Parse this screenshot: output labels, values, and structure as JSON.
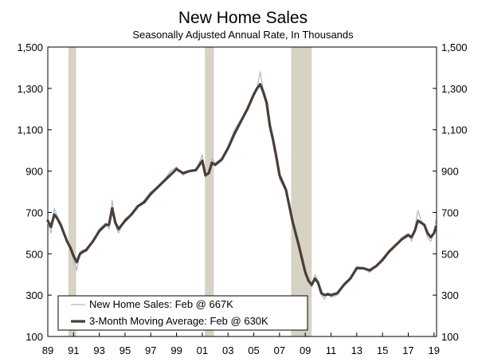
{
  "chart_data": {
    "type": "line",
    "title": "New Home Sales",
    "subtitle": "Seasonally Adjusted Annual Rate, In Thousands",
    "xlabel": "",
    "ylabel": "",
    "xlim": [
      1989.0,
      2019.2
    ],
    "ylim": [
      100,
      1500
    ],
    "y_ticks": [
      100,
      300,
      500,
      700,
      900,
      1100,
      1300,
      1500
    ],
    "y_tick_labels": [
      "100",
      "300",
      "500",
      "700",
      "900",
      "1,100",
      "1,300",
      "1,500"
    ],
    "y_axis_right": true,
    "x_ticks": [
      1989,
      1991,
      1993,
      1995,
      1997,
      1999,
      2001,
      2003,
      2005,
      2007,
      2009,
      2011,
      2013,
      2015,
      2017,
      2019
    ],
    "x_tick_labels": [
      "89",
      "91",
      "93",
      "95",
      "97",
      "99",
      "01",
      "03",
      "05",
      "07",
      "09",
      "11",
      "13",
      "15",
      "17",
      "19"
    ],
    "grid": false,
    "legend_position": "bottom-left",
    "recessions": [
      [
        1990.6,
        1991.2
      ],
      [
        2001.2,
        2001.9
      ],
      [
        2007.9,
        2009.5
      ]
    ],
    "recession_color": "#d6d2c4",
    "series": [
      {
        "name": "New Home Sales: Feb @ 667K",
        "color": "#a9b8cc",
        "style": "thin",
        "x": [
          1989.0,
          1989.25,
          1989.5,
          1989.75,
          1990.0,
          1990.25,
          1990.5,
          1990.75,
          1991.0,
          1991.25,
          1991.5,
          1991.75,
          1992.0,
          1992.5,
          1993.0,
          1993.5,
          1993.75,
          1994.0,
          1994.25,
          1994.5,
          1995.0,
          1995.5,
          1996.0,
          1996.5,
          1997.0,
          1997.5,
          1998.0,
          1998.5,
          1999.0,
          1999.5,
          2000.0,
          2000.5,
          2001.0,
          2001.25,
          2001.5,
          2001.75,
          2002.0,
          2002.5,
          2003.0,
          2003.5,
          2004.0,
          2004.5,
          2005.0,
          2005.25,
          2005.5,
          2005.75,
          2006.0,
          2006.25,
          2006.5,
          2006.75,
          2007.0,
          2007.5,
          2008.0,
          2008.5,
          2009.0,
          2009.25,
          2009.5,
          2009.75,
          2010.0,
          2010.25,
          2010.5,
          2010.75,
          2011.0,
          2011.5,
          2012.0,
          2012.5,
          2013.0,
          2013.5,
          2014.0,
          2014.5,
          2015.0,
          2015.5,
          2016.0,
          2016.5,
          2017.0,
          2017.25,
          2017.5,
          2017.75,
          2018.0,
          2018.25,
          2018.5,
          2018.75,
          2019.0,
          2019.15
        ],
        "y": [
          650,
          600,
          720,
          680,
          640,
          590,
          560,
          520,
          470,
          420,
          510,
          520,
          510,
          560,
          620,
          650,
          620,
          760,
          640,
          600,
          670,
          690,
          730,
          760,
          800,
          820,
          850,
          900,
          920,
          880,
          900,
          900,
          980,
          870,
          890,
          960,
          940,
          960,
          1020,
          1100,
          1150,
          1200,
          1280,
          1300,
          1380,
          1290,
          1230,
          1100,
          1040,
          960,
          860,
          800,
          650,
          520,
          400,
          370,
          340,
          400,
          370,
          300,
          280,
          310,
          290,
          300,
          350,
          380,
          440,
          430,
          410,
          440,
          480,
          510,
          540,
          580,
          600,
          560,
          620,
          710,
          660,
          640,
          580,
          560,
          600,
          667
        ]
      },
      {
        "name": "3-Month Moving Average: Feb @ 630K",
        "color": "#4a3d36",
        "style": "thick",
        "x": [
          1989.0,
          1989.25,
          1989.5,
          1989.75,
          1990.0,
          1990.25,
          1990.5,
          1990.75,
          1991.0,
          1991.25,
          1991.5,
          1991.75,
          1992.0,
          1992.5,
          1993.0,
          1993.5,
          1993.75,
          1994.0,
          1994.25,
          1994.5,
          1995.0,
          1995.5,
          1996.0,
          1996.5,
          1997.0,
          1997.5,
          1998.0,
          1998.5,
          1999.0,
          1999.5,
          2000.0,
          2000.5,
          2001.0,
          2001.25,
          2001.5,
          2001.75,
          2002.0,
          2002.5,
          2003.0,
          2003.5,
          2004.0,
          2004.5,
          2005.0,
          2005.25,
          2005.5,
          2005.75,
          2006.0,
          2006.25,
          2006.5,
          2006.75,
          2007.0,
          2007.5,
          2008.0,
          2008.5,
          2009.0,
          2009.25,
          2009.5,
          2009.75,
          2010.0,
          2010.25,
          2010.5,
          2010.75,
          2011.0,
          2011.5,
          2012.0,
          2012.5,
          2013.0,
          2013.5,
          2014.0,
          2014.5,
          2015.0,
          2015.5,
          2016.0,
          2016.5,
          2017.0,
          2017.25,
          2017.5,
          2017.75,
          2018.0,
          2018.25,
          2018.5,
          2018.75,
          2019.0,
          2019.15
        ],
        "y": [
          660,
          630,
          690,
          670,
          640,
          600,
          560,
          530,
          490,
          460,
          500,
          510,
          520,
          560,
          610,
          640,
          640,
          720,
          650,
          620,
          660,
          690,
          730,
          750,
          790,
          820,
          850,
          880,
          910,
          890,
          900,
          905,
          950,
          880,
          890,
          940,
          930,
          955,
          1010,
          1080,
          1140,
          1200,
          1270,
          1300,
          1320,
          1280,
          1230,
          1120,
          1050,
          970,
          880,
          810,
          660,
          540,
          410,
          370,
          350,
          380,
          360,
          310,
          300,
          305,
          300,
          310,
          350,
          380,
          430,
          430,
          420,
          440,
          470,
          510,
          540,
          570,
          590,
          580,
          610,
          660,
          650,
          640,
          600,
          580,
          600,
          630
        ]
      }
    ]
  }
}
